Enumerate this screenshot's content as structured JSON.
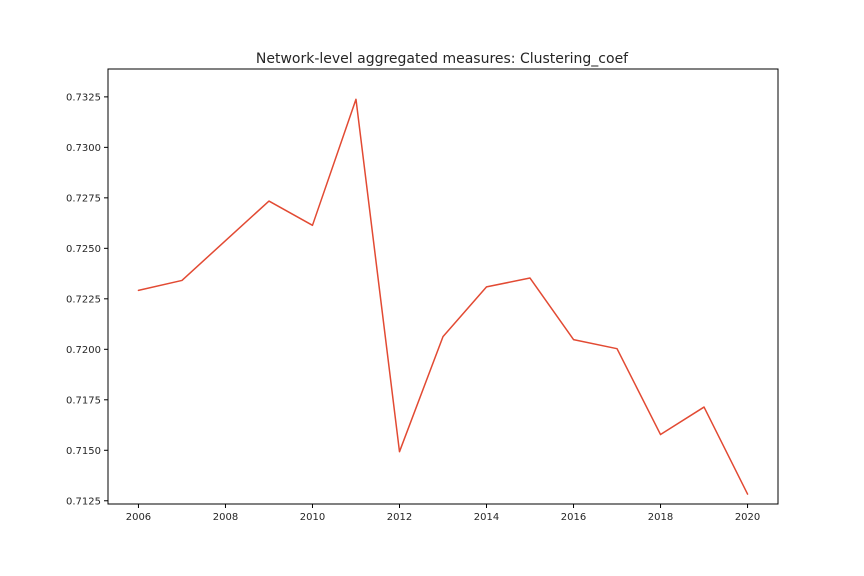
{
  "chart_data": {
    "type": "line",
    "title": "Network-level aggregated measures: Clustering_coef",
    "xlabel": "",
    "ylabel": "",
    "x": [
      2006,
      2007,
      2008,
      2009,
      2010,
      2011,
      2012,
      2013,
      2014,
      2015,
      2016,
      2017,
      2018,
      2019,
      2020
    ],
    "series": [
      {
        "values": [
          0.72292,
          0.72341,
          0.72538,
          0.72734,
          0.72614,
          0.73238,
          0.71493,
          0.72063,
          0.72309,
          0.72353,
          0.72048,
          0.72003,
          0.71578,
          0.71714,
          0.71283
        ],
        "color": "#e24a33"
      }
    ],
    "xticks": [
      "2006",
      "2008",
      "2010",
      "2012",
      "2014",
      "2016",
      "2018",
      "2020"
    ],
    "yticks": [
      "0.7125",
      "0.7150",
      "0.7175",
      "0.7200",
      "0.7225",
      "0.7250",
      "0.7275",
      "0.7300",
      "0.7325"
    ],
    "xlim": [
      2005.3,
      2020.7
    ],
    "ylim": [
      0.71234,
      0.73388
    ],
    "grid": false,
    "legend": "none"
  }
}
